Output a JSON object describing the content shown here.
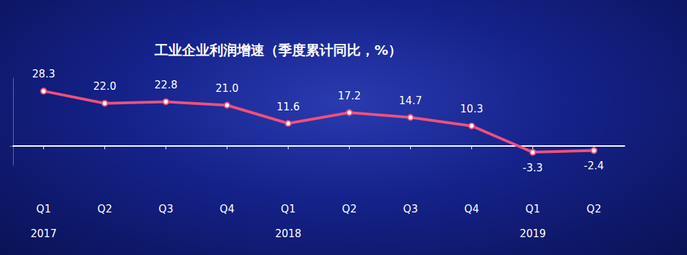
{
  "chart_data": {
    "type": "line",
    "title": "工业企业利润增速（季度累计同比，%）",
    "categories": [
      "Q1\n2017",
      "Q2",
      "Q3",
      "Q4",
      "Q1\n2018",
      "Q2",
      "Q3",
      "Q4",
      "Q1\n2019",
      "Q2"
    ],
    "values": [
      28.3,
      22.0,
      22.8,
      21.0,
      11.6,
      17.2,
      14.7,
      10.3,
      -3.3,
      -2.4
    ],
    "value_labels": [
      "28.3",
      "22.0",
      "22.8",
      "21.0",
      "11.6",
      "17.2",
      "14.7",
      "10.3",
      "-3.3",
      "-2.4"
    ],
    "color": "#f0507a",
    "ylim": [
      -10,
      35
    ],
    "yticks": [
      0
    ],
    "grid": false,
    "data_labels": true,
    "tick_labels": "x",
    "marker": "circle"
  }
}
